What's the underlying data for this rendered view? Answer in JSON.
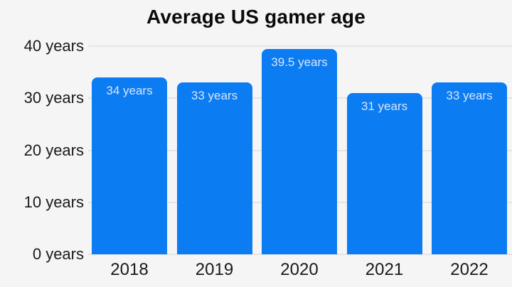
{
  "chart_data": {
    "type": "bar",
    "title": "Average US gamer age",
    "categories": [
      "2018",
      "2019",
      "2020",
      "2021",
      "2022"
    ],
    "values": [
      34,
      33,
      39.5,
      31,
      33
    ],
    "bar_labels": [
      "34 years",
      "33 years",
      "39.5 years",
      "31 years",
      "33 years"
    ],
    "y_ticks": [
      {
        "value": 40,
        "label": "40 years"
      },
      {
        "value": 30,
        "label": "30 years"
      },
      {
        "value": 20,
        "label": "20 years"
      },
      {
        "value": 10,
        "label": "10 years"
      },
      {
        "value": 0,
        "label": "0 years"
      }
    ],
    "ylim": [
      0,
      40
    ],
    "xlabel": "",
    "ylabel": "",
    "unit": "years",
    "grid": "on",
    "legend": "none",
    "colors": {
      "background": "#f5f5f6",
      "bar": "#0c7cf2",
      "bar_label_text": "#d7e6fb",
      "gridline": "#e5e5e7",
      "title_text": "#0a0a0a",
      "axis_text": "#1a1a1c"
    }
  }
}
